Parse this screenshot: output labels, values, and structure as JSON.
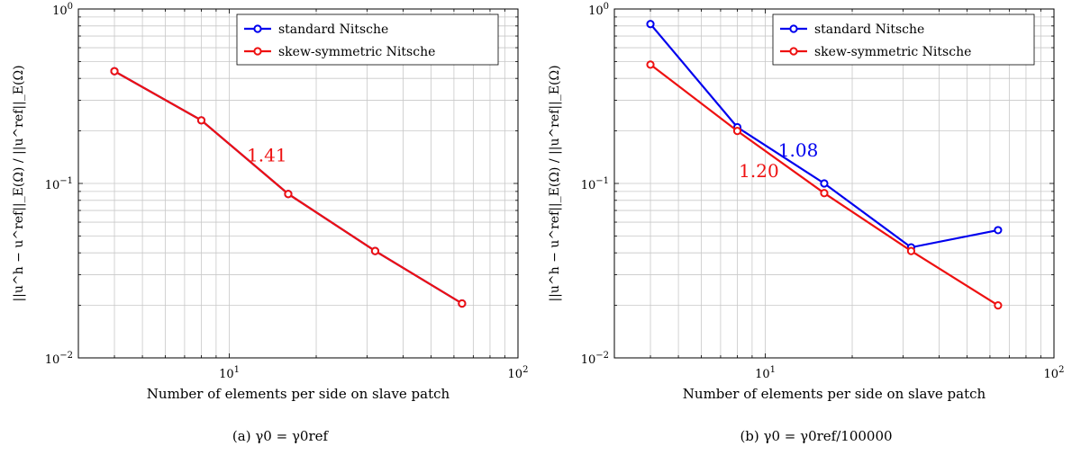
{
  "chart_data": [
    {
      "type": "line",
      "x_scale": "log",
      "y_scale": "log",
      "xlim": [
        3,
        100
      ],
      "ylim": [
        0.01,
        1
      ],
      "grid": true,
      "xlabel": "Number of elements per side on slave patch",
      "ylabel": "||u^h − u^ref||_E(Ω) / ||u^ref||_E(Ω)",
      "x_ticks": [
        {
          "base": "10",
          "exp": "1",
          "value": 10
        },
        {
          "base": "10",
          "exp": "2",
          "value": 100
        }
      ],
      "y_ticks": [
        {
          "base": "10",
          "exp": "−2",
          "value": 0.01
        },
        {
          "base": "10",
          "exp": "−1",
          "value": 0.1
        },
        {
          "base": "10",
          "exp": "0",
          "value": 1
        }
      ],
      "legend_position": "top-right",
      "caption": "(a)  γ0 = γ0ref",
      "series": [
        {
          "name": "standard Nitsche",
          "color": "#0000ee",
          "x": [
            4,
            8,
            16,
            32,
            64
          ],
          "y": [
            0.44,
            0.23,
            0.087,
            0.041,
            0.0205
          ]
        },
        {
          "name": "skew-symmetric Nitsche",
          "color": "#ee1111",
          "x": [
            4,
            8,
            16,
            32,
            64
          ],
          "y": [
            0.44,
            0.23,
            0.087,
            0.041,
            0.0205
          ]
        }
      ],
      "annotations": [
        {
          "text": "1.41",
          "color": "#ee1111",
          "x": 13.5,
          "y": 0.145
        }
      ]
    },
    {
      "type": "line",
      "x_scale": "log",
      "y_scale": "log",
      "xlim": [
        3,
        100
      ],
      "ylim": [
        0.01,
        1
      ],
      "grid": true,
      "xlabel": "Number of elements per side on slave patch",
      "ylabel": "||u^h − u^ref||_E(Ω) / ||u^ref||_E(Ω)",
      "x_ticks": [
        {
          "base": "10",
          "exp": "1",
          "value": 10
        },
        {
          "base": "10",
          "exp": "2",
          "value": 100
        }
      ],
      "y_ticks": [
        {
          "base": "10",
          "exp": "−2",
          "value": 0.01
        },
        {
          "base": "10",
          "exp": "−1",
          "value": 0.1
        },
        {
          "base": "10",
          "exp": "0",
          "value": 1
        }
      ],
      "legend_position": "top-right",
      "caption": "(b)  γ0 = γ0ref/100000",
      "series": [
        {
          "name": "standard Nitsche",
          "color": "#0000ee",
          "x": [
            4,
            8,
            16,
            32,
            64
          ],
          "y": [
            0.82,
            0.21,
            0.1,
            0.043,
            0.054
          ]
        },
        {
          "name": "skew-symmetric Nitsche",
          "color": "#ee1111",
          "x": [
            4,
            8,
            16,
            32,
            64
          ],
          "y": [
            0.48,
            0.2,
            0.088,
            0.041,
            0.02
          ]
        }
      ],
      "annotations": [
        {
          "text": "1.08",
          "color": "#0000ee",
          "x": 13,
          "y": 0.155
        },
        {
          "text": "1.20",
          "color": "#ee1111",
          "x": 9.5,
          "y": 0.118
        }
      ]
    }
  ]
}
